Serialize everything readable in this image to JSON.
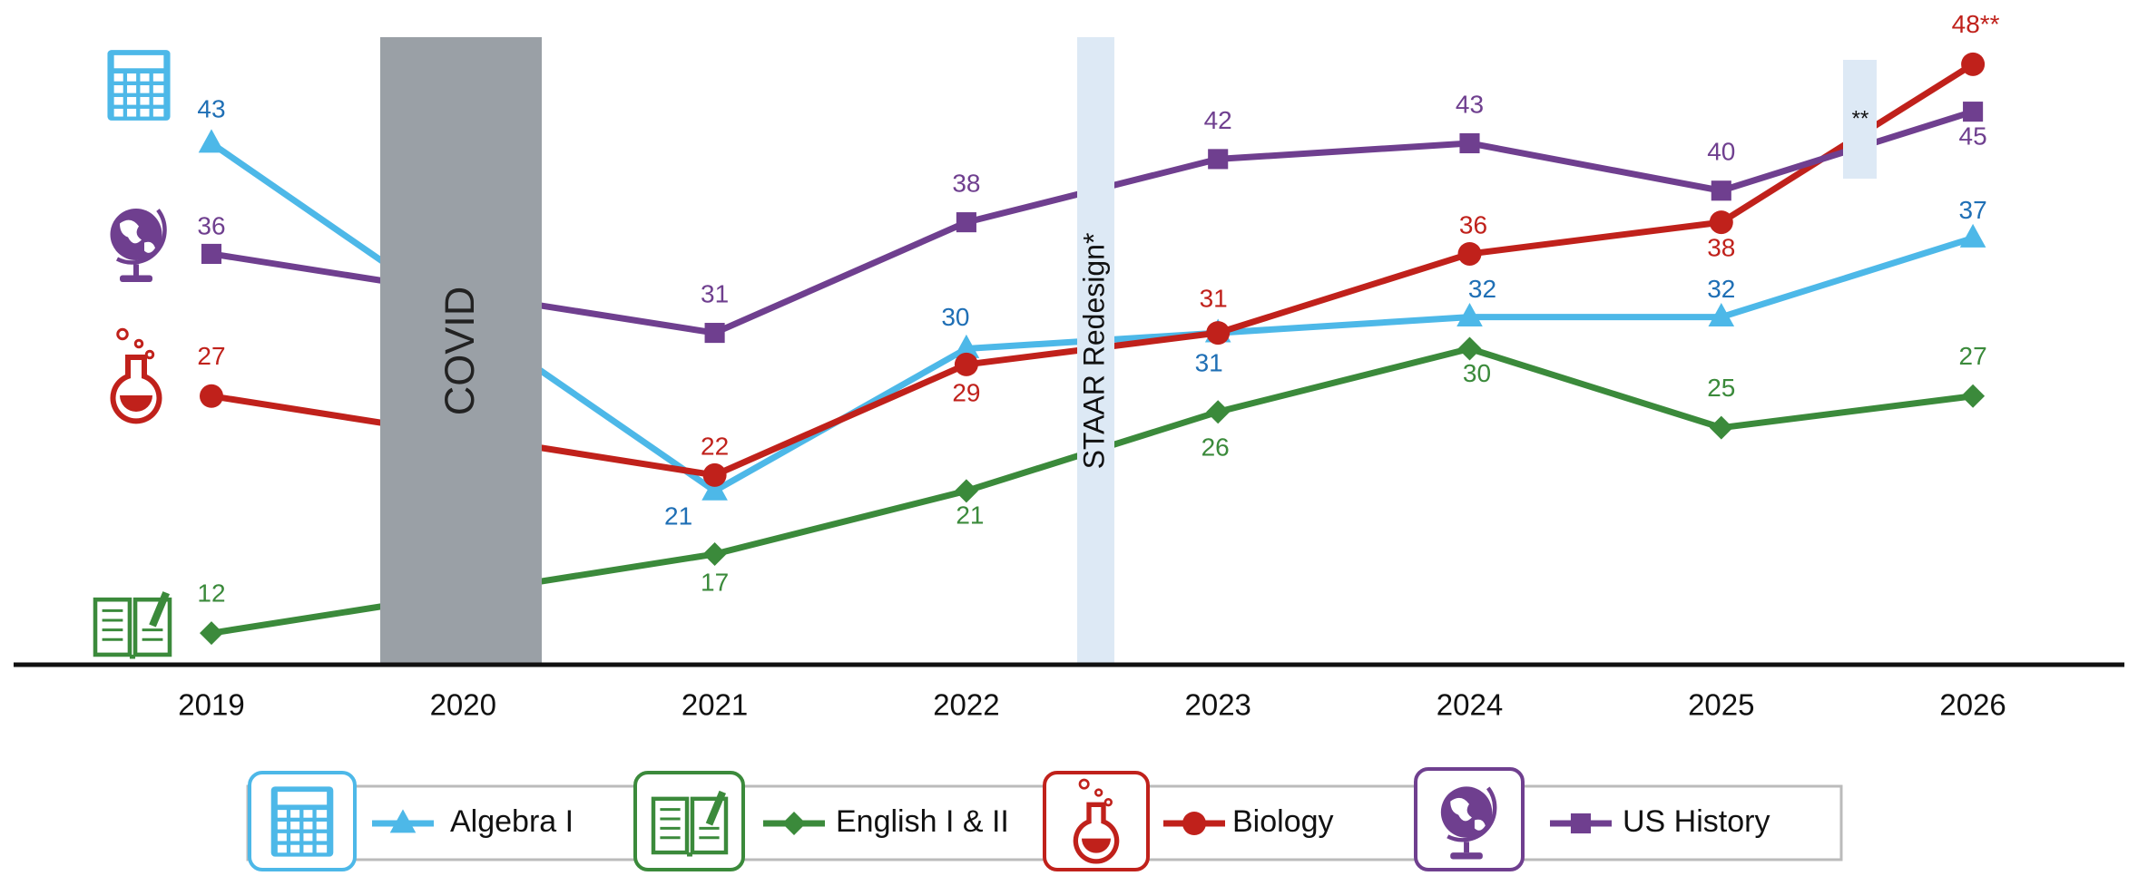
{
  "chart_data": {
    "type": "line",
    "categories": [
      "2019",
      "2020",
      "2021",
      "2022",
      "2023",
      "2024",
      "2025",
      "2026"
    ],
    "ylim": [
      10,
      50
    ],
    "connect_gaps": true,
    "series": [
      {
        "name": "Algebra I",
        "color": "#4db8e8",
        "label_color": "#1f6fb5",
        "marker": "triangle",
        "values": [
          43,
          null,
          21,
          30,
          31,
          32,
          32,
          37
        ]
      },
      {
        "name": "English I & II",
        "color": "#3b8a3b",
        "label_color": "#3b8a3b",
        "marker": "diamond",
        "values": [
          12,
          null,
          17,
          21,
          26,
          30,
          25,
          27
        ]
      },
      {
        "name": "Biology",
        "color": "#c0211b",
        "label_color": "#c0211b",
        "marker": "circle",
        "values": [
          27,
          null,
          22,
          29,
          31,
          36,
          38,
          48
        ],
        "value_labels": [
          "27",
          null,
          "22",
          "29",
          "31",
          "36",
          "38",
          "48**"
        ]
      },
      {
        "name": "US History",
        "color": "#6f3f8f",
        "label_color": "#6f3f8f",
        "marker": "square",
        "values": [
          36,
          null,
          31,
          38,
          42,
          43,
          40,
          45
        ]
      }
    ],
    "annotations": [
      "COVID",
      "STAAR Redesign*",
      "**"
    ]
  }
}
